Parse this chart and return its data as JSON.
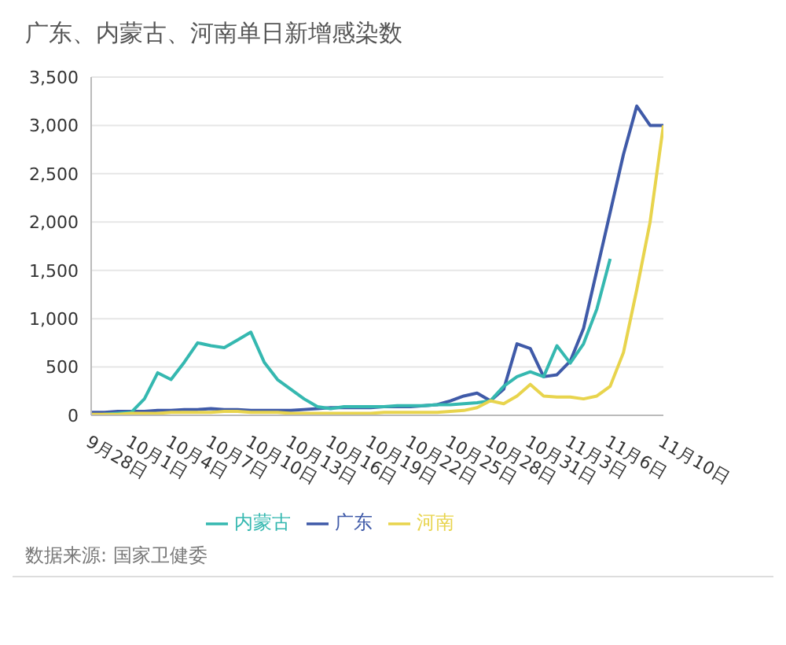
{
  "chart_data": {
    "type": "line",
    "title": "广东、内蒙古、河南单日新增感染数",
    "categories": [
      "9月28日",
      null,
      null,
      "10月1日",
      null,
      null,
      "10月4日",
      null,
      null,
      "10月7日",
      null,
      null,
      "10月10日",
      null,
      null,
      "10月13日",
      null,
      null,
      "10月16日",
      null,
      null,
      "10月19日",
      null,
      null,
      "10月22日",
      null,
      null,
      "10月25日",
      null,
      null,
      "10月28日",
      null,
      null,
      "10月31日",
      null,
      null,
      "11月3日",
      null,
      null,
      "11月6日",
      null,
      null,
      null,
      "11月10日"
    ],
    "series": [
      {
        "name": "广东",
        "color": "#3f5aa8",
        "values": [
          30,
          30,
          40,
          40,
          40,
          50,
          50,
          60,
          60,
          70,
          60,
          60,
          50,
          50,
          50,
          50,
          60,
          70,
          80,
          80,
          80,
          80,
          90,
          90,
          90,
          100,
          110,
          150,
          200,
          230,
          150,
          270,
          740,
          690,
          400,
          420,
          560,
          900,
          1500,
          2100,
          2700,
          3200,
          3000,
          3000
        ]
      },
      {
        "name": "内蒙古",
        "color": "#35b8b0",
        "values": [
          0,
          10,
          20,
          30,
          170,
          440,
          370,
          550,
          750,
          720,
          700,
          780,
          860,
          550,
          370,
          270,
          170,
          90,
          70,
          90,
          90,
          90,
          90,
          100,
          100,
          100,
          110,
          110,
          120,
          130,
          150,
          300,
          400,
          450,
          400,
          720,
          540,
          740,
          1100,
          1620,
          null,
          null,
          null,
          null
        ]
      },
      {
        "name": "河南",
        "color": "#e8d44d",
        "values": [
          10,
          10,
          10,
          20,
          20,
          20,
          30,
          30,
          30,
          30,
          40,
          40,
          30,
          30,
          30,
          20,
          20,
          20,
          20,
          20,
          20,
          20,
          30,
          30,
          30,
          30,
          30,
          40,
          50,
          80,
          150,
          120,
          200,
          320,
          200,
          190,
          190,
          170,
          200,
          300,
          650,
          1300,
          2000,
          3000
        ]
      }
    ],
    "ylim": [
      0,
      3500
    ],
    "yticks": [
      0,
      500,
      {
        "value": 1000,
        "label": "1,000"
      },
      {
        "value": 1500,
        "label": "1,500"
      },
      {
        "value": 2000,
        "label": "2,000"
      },
      {
        "value": 2500,
        "label": "2,500"
      },
      {
        "value": 3000,
        "label": "3,000"
      },
      {
        "value": 3500,
        "label": "3,500"
      }
    ],
    "grid": "y",
    "legend": "bottom",
    "marker": "none",
    "line_style": "solid",
    "annotations": [
      "数据来源: 国家卫健委"
    ]
  }
}
